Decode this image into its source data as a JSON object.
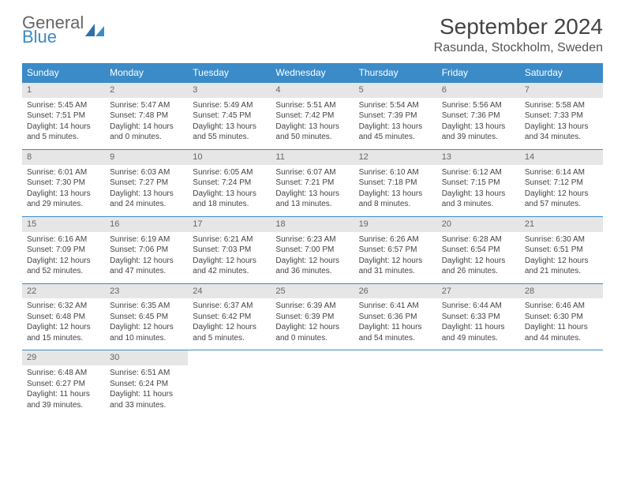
{
  "logo": {
    "text1": "General",
    "text2": "Blue"
  },
  "title": "September 2024",
  "location": "Rasunda, Stockholm, Sweden",
  "accent_color": "#3b8bc8",
  "daynum_bg": "#e6e6e6",
  "dow": [
    "Sunday",
    "Monday",
    "Tuesday",
    "Wednesday",
    "Thursday",
    "Friday",
    "Saturday"
  ],
  "weeks": [
    [
      {
        "n": "1",
        "sr": "Sunrise: 5:45 AM",
        "ss": "Sunset: 7:51 PM",
        "dl": "Daylight: 14 hours and 5 minutes."
      },
      {
        "n": "2",
        "sr": "Sunrise: 5:47 AM",
        "ss": "Sunset: 7:48 PM",
        "dl": "Daylight: 14 hours and 0 minutes."
      },
      {
        "n": "3",
        "sr": "Sunrise: 5:49 AM",
        "ss": "Sunset: 7:45 PM",
        "dl": "Daylight: 13 hours and 55 minutes."
      },
      {
        "n": "4",
        "sr": "Sunrise: 5:51 AM",
        "ss": "Sunset: 7:42 PM",
        "dl": "Daylight: 13 hours and 50 minutes."
      },
      {
        "n": "5",
        "sr": "Sunrise: 5:54 AM",
        "ss": "Sunset: 7:39 PM",
        "dl": "Daylight: 13 hours and 45 minutes."
      },
      {
        "n": "6",
        "sr": "Sunrise: 5:56 AM",
        "ss": "Sunset: 7:36 PM",
        "dl": "Daylight: 13 hours and 39 minutes."
      },
      {
        "n": "7",
        "sr": "Sunrise: 5:58 AM",
        "ss": "Sunset: 7:33 PM",
        "dl": "Daylight: 13 hours and 34 minutes."
      }
    ],
    [
      {
        "n": "8",
        "sr": "Sunrise: 6:01 AM",
        "ss": "Sunset: 7:30 PM",
        "dl": "Daylight: 13 hours and 29 minutes."
      },
      {
        "n": "9",
        "sr": "Sunrise: 6:03 AM",
        "ss": "Sunset: 7:27 PM",
        "dl": "Daylight: 13 hours and 24 minutes."
      },
      {
        "n": "10",
        "sr": "Sunrise: 6:05 AM",
        "ss": "Sunset: 7:24 PM",
        "dl": "Daylight: 13 hours and 18 minutes."
      },
      {
        "n": "11",
        "sr": "Sunrise: 6:07 AM",
        "ss": "Sunset: 7:21 PM",
        "dl": "Daylight: 13 hours and 13 minutes."
      },
      {
        "n": "12",
        "sr": "Sunrise: 6:10 AM",
        "ss": "Sunset: 7:18 PM",
        "dl": "Daylight: 13 hours and 8 minutes."
      },
      {
        "n": "13",
        "sr": "Sunrise: 6:12 AM",
        "ss": "Sunset: 7:15 PM",
        "dl": "Daylight: 13 hours and 3 minutes."
      },
      {
        "n": "14",
        "sr": "Sunrise: 6:14 AM",
        "ss": "Sunset: 7:12 PM",
        "dl": "Daylight: 12 hours and 57 minutes."
      }
    ],
    [
      {
        "n": "15",
        "sr": "Sunrise: 6:16 AM",
        "ss": "Sunset: 7:09 PM",
        "dl": "Daylight: 12 hours and 52 minutes."
      },
      {
        "n": "16",
        "sr": "Sunrise: 6:19 AM",
        "ss": "Sunset: 7:06 PM",
        "dl": "Daylight: 12 hours and 47 minutes."
      },
      {
        "n": "17",
        "sr": "Sunrise: 6:21 AM",
        "ss": "Sunset: 7:03 PM",
        "dl": "Daylight: 12 hours and 42 minutes."
      },
      {
        "n": "18",
        "sr": "Sunrise: 6:23 AM",
        "ss": "Sunset: 7:00 PM",
        "dl": "Daylight: 12 hours and 36 minutes."
      },
      {
        "n": "19",
        "sr": "Sunrise: 6:26 AM",
        "ss": "Sunset: 6:57 PM",
        "dl": "Daylight: 12 hours and 31 minutes."
      },
      {
        "n": "20",
        "sr": "Sunrise: 6:28 AM",
        "ss": "Sunset: 6:54 PM",
        "dl": "Daylight: 12 hours and 26 minutes."
      },
      {
        "n": "21",
        "sr": "Sunrise: 6:30 AM",
        "ss": "Sunset: 6:51 PM",
        "dl": "Daylight: 12 hours and 21 minutes."
      }
    ],
    [
      {
        "n": "22",
        "sr": "Sunrise: 6:32 AM",
        "ss": "Sunset: 6:48 PM",
        "dl": "Daylight: 12 hours and 15 minutes."
      },
      {
        "n": "23",
        "sr": "Sunrise: 6:35 AM",
        "ss": "Sunset: 6:45 PM",
        "dl": "Daylight: 12 hours and 10 minutes."
      },
      {
        "n": "24",
        "sr": "Sunrise: 6:37 AM",
        "ss": "Sunset: 6:42 PM",
        "dl": "Daylight: 12 hours and 5 minutes."
      },
      {
        "n": "25",
        "sr": "Sunrise: 6:39 AM",
        "ss": "Sunset: 6:39 PM",
        "dl": "Daylight: 12 hours and 0 minutes."
      },
      {
        "n": "26",
        "sr": "Sunrise: 6:41 AM",
        "ss": "Sunset: 6:36 PM",
        "dl": "Daylight: 11 hours and 54 minutes."
      },
      {
        "n": "27",
        "sr": "Sunrise: 6:44 AM",
        "ss": "Sunset: 6:33 PM",
        "dl": "Daylight: 11 hours and 49 minutes."
      },
      {
        "n": "28",
        "sr": "Sunrise: 6:46 AM",
        "ss": "Sunset: 6:30 PM",
        "dl": "Daylight: 11 hours and 44 minutes."
      }
    ],
    [
      {
        "n": "29",
        "sr": "Sunrise: 6:48 AM",
        "ss": "Sunset: 6:27 PM",
        "dl": "Daylight: 11 hours and 39 minutes."
      },
      {
        "n": "30",
        "sr": "Sunrise: 6:51 AM",
        "ss": "Sunset: 6:24 PM",
        "dl": "Daylight: 11 hours and 33 minutes."
      },
      null,
      null,
      null,
      null,
      null
    ]
  ]
}
